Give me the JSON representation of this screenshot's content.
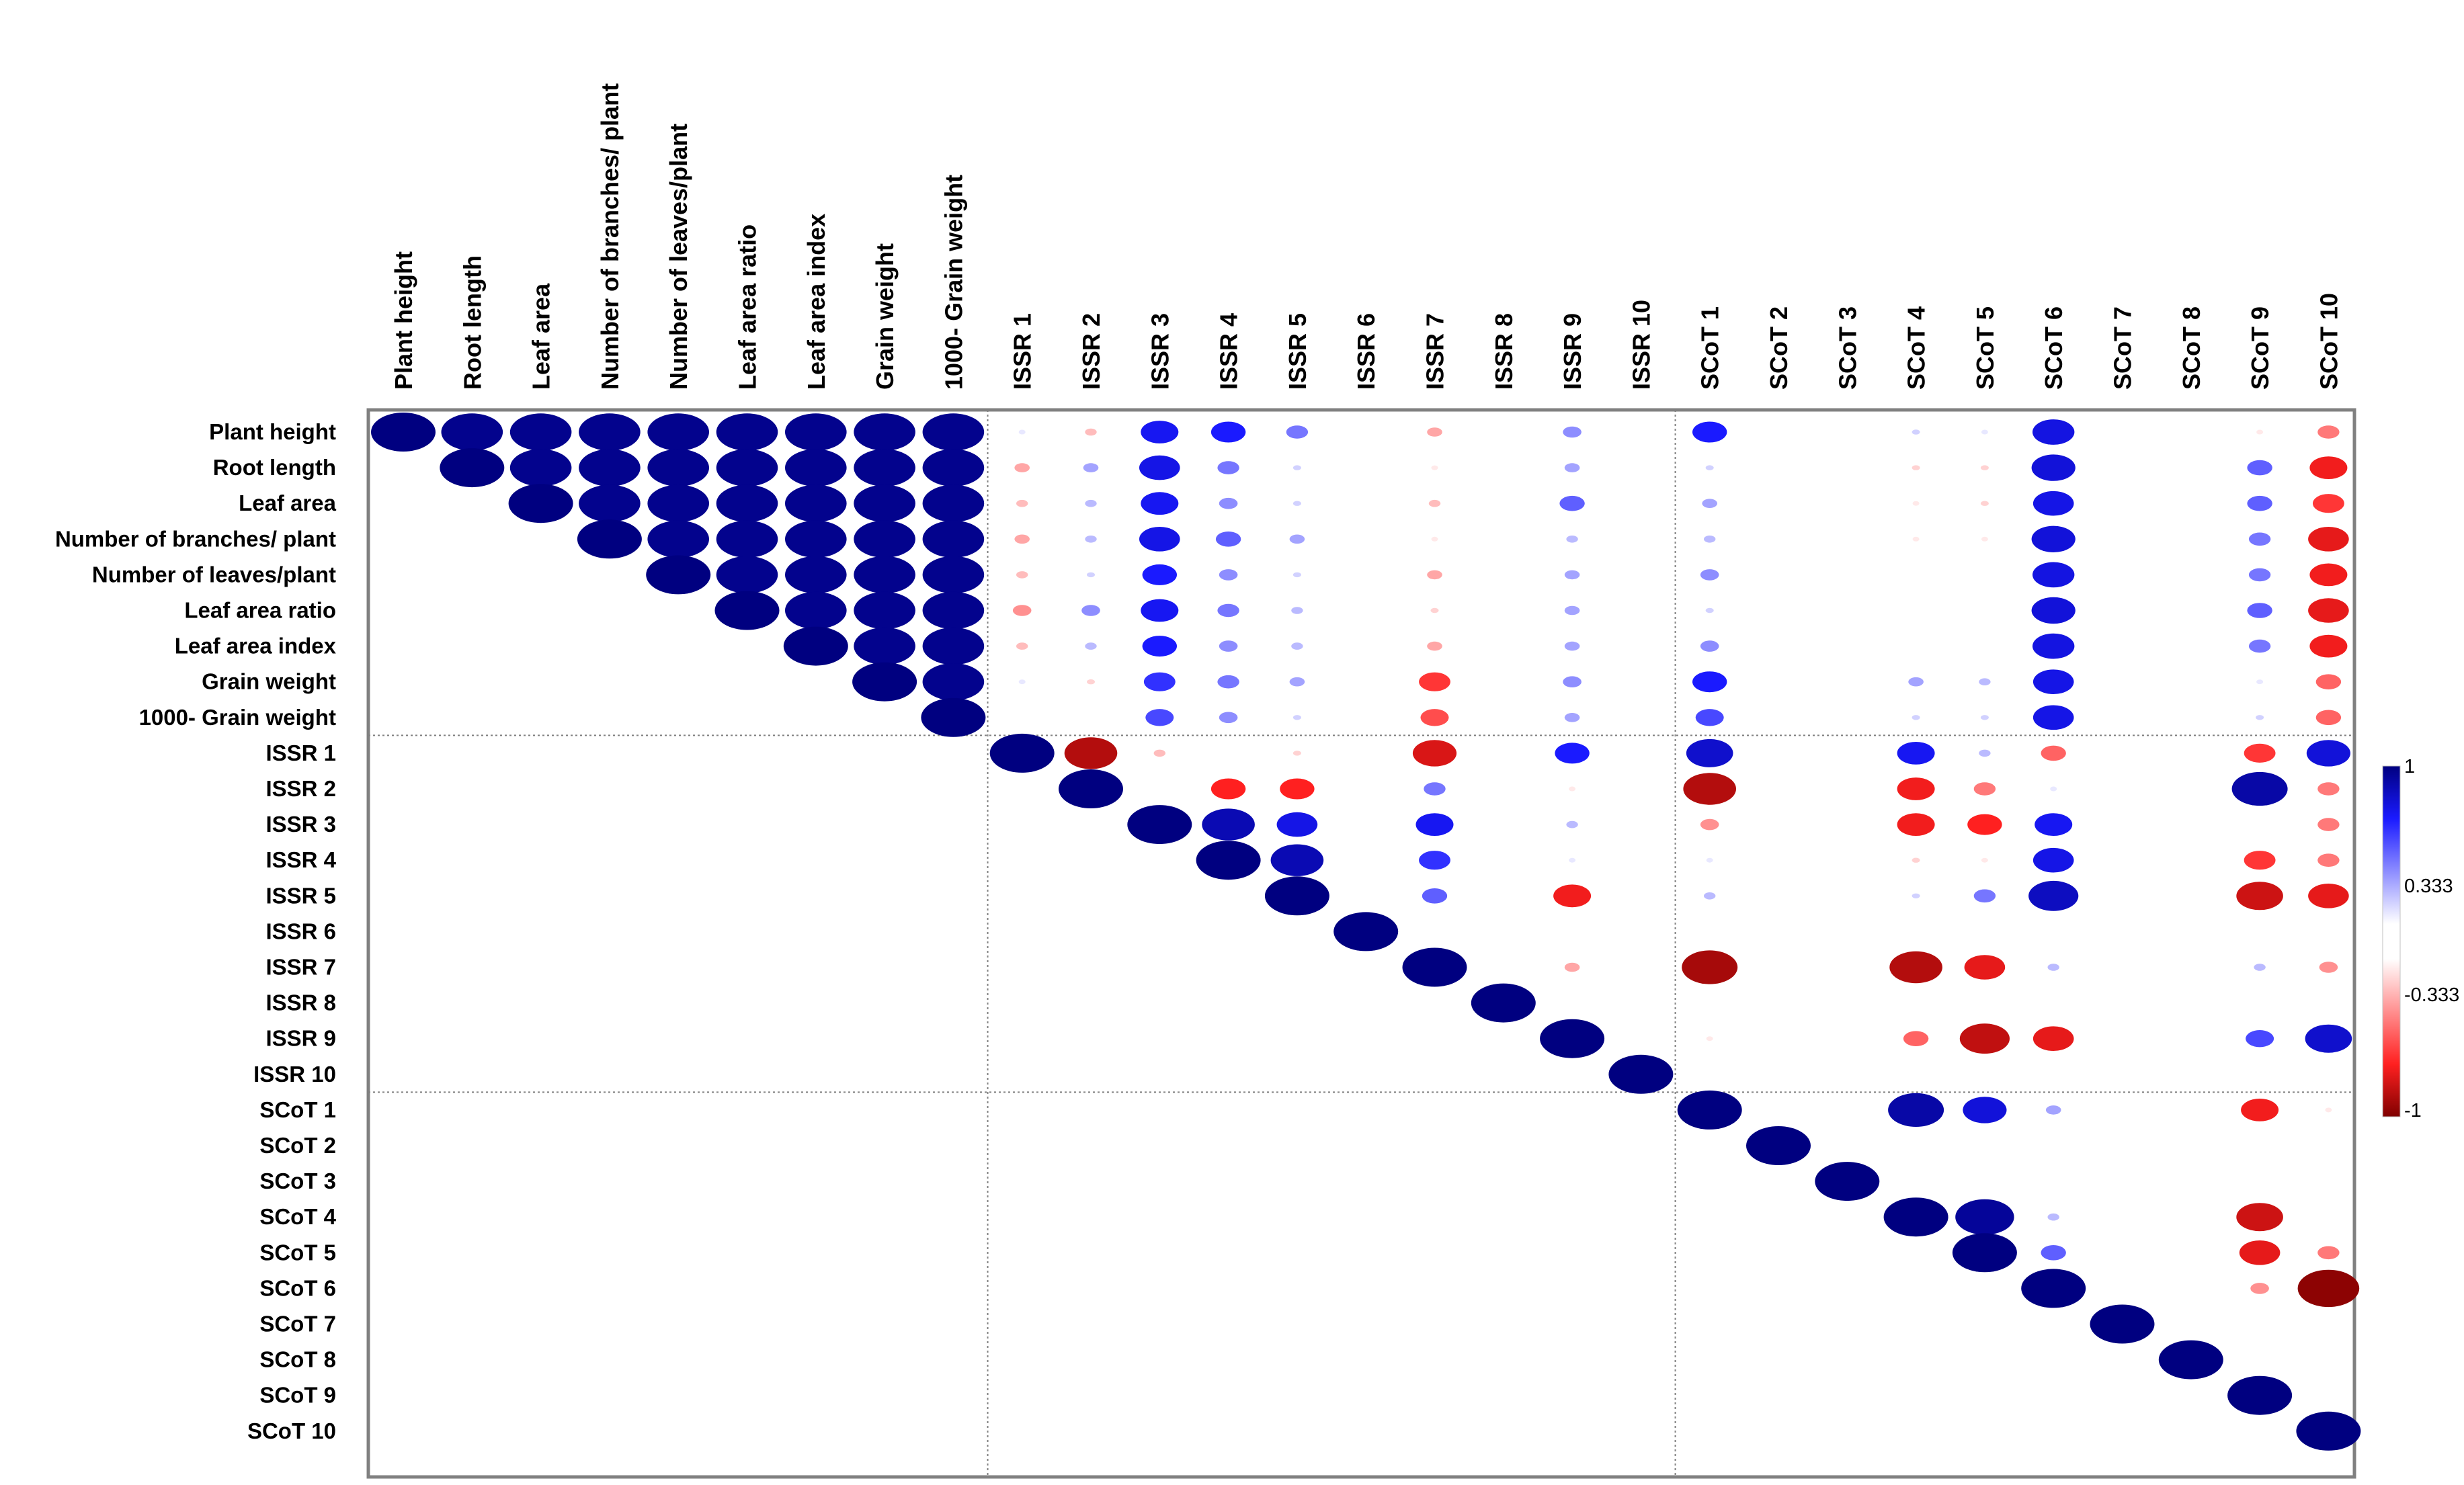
{
  "chart_data": {
    "type": "heatmap",
    "style": "correlation-ellipse",
    "colors": {
      "positive_strong": "#000080",
      "positive_mid": "#1a1aff",
      "neutral": "#ffffff",
      "negative_mid": "#ff2020",
      "negative_strong": "#800000",
      "grid": "#808080"
    },
    "row_labels": [
      "Plant height",
      "Root length",
      "Leaf area",
      "Number of branches/ plant",
      "Number of leaves/plant",
      "Leaf area ratio",
      "Leaf area index",
      "Grain weight",
      "1000- Grain weight",
      "ISSR 1",
      "ISSR 2",
      "ISSR 3",
      "ISSR 4",
      "ISSR 5",
      "ISSR 6",
      "ISSR 7",
      "ISSR 8",
      "ISSR 9",
      "ISSR 10",
      "SCoT 1",
      "SCoT 2",
      "SCoT 3",
      "SCoT 4",
      "SCoT 5",
      "SCoT 6",
      "SCoT 7",
      "SCoT 8",
      "SCoT 9",
      "SCoT 10"
    ],
    "col_labels": [
      "Plant height",
      "Root length",
      "Leaf area",
      "Number of branches/ plant",
      "Number of leaves/plant",
      "Leaf area ratio",
      "Leaf area index",
      "Grain weight",
      "1000- Grain weight",
      "ISSR 1",
      "ISSR 2",
      "ISSR 3",
      "ISSR 4",
      "ISSR 5",
      "ISSR 6",
      "ISSR 7",
      "ISSR 8",
      "ISSR 9",
      "ISSR 10",
      "SCoT 1",
      "SCoT 2",
      "SCoT 3",
      "SCoT 4",
      "SCoT 5",
      "SCoT 6",
      "SCoT 7",
      "SCoT 8",
      "SCoT 9",
      "SCoT 10"
    ],
    "group_boundaries_after_index": [
      8,
      18
    ],
    "legend": {
      "labels": [
        "1",
        "0.333",
        "-0.333",
        "-1"
      ],
      "range": [
        -1,
        1
      ],
      "position": "right"
    },
    "correlations": [
      {
        "row": 0,
        "col": 0,
        "r": 1.0
      },
      {
        "row": 0,
        "col": 1,
        "r": 0.95
      },
      {
        "row": 0,
        "col": 2,
        "r": 0.95
      },
      {
        "row": 0,
        "col": 3,
        "r": 0.95
      },
      {
        "row": 0,
        "col": 4,
        "r": 0.95
      },
      {
        "row": 0,
        "col": 5,
        "r": 0.95
      },
      {
        "row": 0,
        "col": 6,
        "r": 0.95
      },
      {
        "row": 0,
        "col": 7,
        "r": 0.95
      },
      {
        "row": 0,
        "col": 8,
        "r": 0.95
      },
      {
        "row": 1,
        "col": 1,
        "r": 1.0
      },
      {
        "row": 1,
        "col": 2,
        "r": 0.95
      },
      {
        "row": 1,
        "col": 3,
        "r": 0.95
      },
      {
        "row": 1,
        "col": 4,
        "r": 0.95
      },
      {
        "row": 1,
        "col": 5,
        "r": 0.95
      },
      {
        "row": 1,
        "col": 6,
        "r": 0.95
      },
      {
        "row": 1,
        "col": 7,
        "r": 0.95
      },
      {
        "row": 1,
        "col": 8,
        "r": 0.95
      },
      {
        "row": 2,
        "col": 2,
        "r": 1.0
      },
      {
        "row": 2,
        "col": 3,
        "r": 0.95
      },
      {
        "row": 2,
        "col": 4,
        "r": 0.95
      },
      {
        "row": 2,
        "col": 5,
        "r": 0.95
      },
      {
        "row": 2,
        "col": 6,
        "r": 0.95
      },
      {
        "row": 2,
        "col": 7,
        "r": 0.95
      },
      {
        "row": 2,
        "col": 8,
        "r": 0.95
      },
      {
        "row": 3,
        "col": 3,
        "r": 1.0
      },
      {
        "row": 3,
        "col": 4,
        "r": 0.95
      },
      {
        "row": 3,
        "col": 5,
        "r": 0.95
      },
      {
        "row": 3,
        "col": 6,
        "r": 0.95
      },
      {
        "row": 3,
        "col": 7,
        "r": 0.95
      },
      {
        "row": 3,
        "col": 8,
        "r": 0.95
      },
      {
        "row": 4,
        "col": 4,
        "r": 1.0
      },
      {
        "row": 4,
        "col": 5,
        "r": 0.95
      },
      {
        "row": 4,
        "col": 6,
        "r": 0.95
      },
      {
        "row": 4,
        "col": 7,
        "r": 0.95
      },
      {
        "row": 4,
        "col": 8,
        "r": 0.95
      },
      {
        "row": 5,
        "col": 5,
        "r": 1.0
      },
      {
        "row": 5,
        "col": 6,
        "r": 0.95
      },
      {
        "row": 5,
        "col": 7,
        "r": 0.95
      },
      {
        "row": 5,
        "col": 8,
        "r": 0.95
      },
      {
        "row": 6,
        "col": 6,
        "r": 1.0
      },
      {
        "row": 6,
        "col": 7,
        "r": 0.95
      },
      {
        "row": 6,
        "col": 8,
        "r": 0.95
      },
      {
        "row": 7,
        "col": 7,
        "r": 1.0
      },
      {
        "row": 7,
        "col": 8,
        "r": 0.95
      },
      {
        "row": 8,
        "col": 8,
        "r": 1.0
      },
      {
        "row": 0,
        "col": 9,
        "r": 0.05
      },
      {
        "row": 0,
        "col": 10,
        "r": -0.15
      },
      {
        "row": 0,
        "col": 11,
        "r": 0.55
      },
      {
        "row": 0,
        "col": 12,
        "r": 0.5
      },
      {
        "row": 0,
        "col": 13,
        "r": 0.3
      },
      {
        "row": 0,
        "col": 15,
        "r": -0.2
      },
      {
        "row": 0,
        "col": 17,
        "r": 0.25
      },
      {
        "row": 0,
        "col": 19,
        "r": 0.5
      },
      {
        "row": 0,
        "col": 22,
        "r": 0.1
      },
      {
        "row": 0,
        "col": 23,
        "r": 0.05
      },
      {
        "row": 0,
        "col": 24,
        "r": 0.62
      },
      {
        "row": 0,
        "col": 27,
        "r": -0.05
      },
      {
        "row": 0,
        "col": 28,
        "r": -0.3
      },
      {
        "row": 1,
        "col": 9,
        "r": -0.2
      },
      {
        "row": 1,
        "col": 10,
        "r": 0.2
      },
      {
        "row": 1,
        "col": 11,
        "r": 0.6
      },
      {
        "row": 1,
        "col": 12,
        "r": 0.3
      },
      {
        "row": 1,
        "col": 13,
        "r": 0.1
      },
      {
        "row": 1,
        "col": 15,
        "r": -0.05
      },
      {
        "row": 1,
        "col": 17,
        "r": 0.2
      },
      {
        "row": 1,
        "col": 19,
        "r": 0.1
      },
      {
        "row": 1,
        "col": 22,
        "r": -0.1
      },
      {
        "row": 1,
        "col": 23,
        "r": -0.1
      },
      {
        "row": 1,
        "col": 24,
        "r": 0.65
      },
      {
        "row": 1,
        "col": 27,
        "r": 0.35
      },
      {
        "row": 1,
        "col": 28,
        "r": -0.55
      },
      {
        "row": 2,
        "col": 9,
        "r": -0.15
      },
      {
        "row": 2,
        "col": 10,
        "r": 0.15
      },
      {
        "row": 2,
        "col": 11,
        "r": 0.55
      },
      {
        "row": 2,
        "col": 12,
        "r": 0.25
      },
      {
        "row": 2,
        "col": 13,
        "r": 0.1
      },
      {
        "row": 2,
        "col": 15,
        "r": -0.15
      },
      {
        "row": 2,
        "col": 17,
        "r": 0.35
      },
      {
        "row": 2,
        "col": 19,
        "r": 0.2
      },
      {
        "row": 2,
        "col": 22,
        "r": -0.05
      },
      {
        "row": 2,
        "col": 23,
        "r": -0.1
      },
      {
        "row": 2,
        "col": 24,
        "r": 0.6
      },
      {
        "row": 2,
        "col": 27,
        "r": 0.35
      },
      {
        "row": 2,
        "col": 28,
        "r": -0.45
      },
      {
        "row": 3,
        "col": 9,
        "r": -0.2
      },
      {
        "row": 3,
        "col": 10,
        "r": 0.15
      },
      {
        "row": 3,
        "col": 11,
        "r": 0.6
      },
      {
        "row": 3,
        "col": 12,
        "r": 0.35
      },
      {
        "row": 3,
        "col": 13,
        "r": 0.2
      },
      {
        "row": 3,
        "col": 15,
        "r": -0.05
      },
      {
        "row": 3,
        "col": 17,
        "r": 0.15
      },
      {
        "row": 3,
        "col": 19,
        "r": 0.15
      },
      {
        "row": 3,
        "col": 22,
        "r": -0.05
      },
      {
        "row": 3,
        "col": 23,
        "r": -0.05
      },
      {
        "row": 3,
        "col": 24,
        "r": 0.65
      },
      {
        "row": 3,
        "col": 27,
        "r": 0.3
      },
      {
        "row": 3,
        "col": 28,
        "r": -0.6
      },
      {
        "row": 4,
        "col": 9,
        "r": -0.15
      },
      {
        "row": 4,
        "col": 10,
        "r": 0.1
      },
      {
        "row": 4,
        "col": 11,
        "r": 0.5
      },
      {
        "row": 4,
        "col": 12,
        "r": 0.25
      },
      {
        "row": 4,
        "col": 13,
        "r": 0.1
      },
      {
        "row": 4,
        "col": 15,
        "r": -0.2
      },
      {
        "row": 4,
        "col": 17,
        "r": 0.2
      },
      {
        "row": 4,
        "col": 19,
        "r": 0.25
      },
      {
        "row": 4,
        "col": 24,
        "r": 0.62
      },
      {
        "row": 4,
        "col": 27,
        "r": 0.3
      },
      {
        "row": 4,
        "col": 28,
        "r": -0.55
      },
      {
        "row": 5,
        "col": 9,
        "r": -0.25
      },
      {
        "row": 5,
        "col": 10,
        "r": 0.25
      },
      {
        "row": 5,
        "col": 11,
        "r": 0.55
      },
      {
        "row": 5,
        "col": 12,
        "r": 0.3
      },
      {
        "row": 5,
        "col": 13,
        "r": 0.15
      },
      {
        "row": 5,
        "col": 15,
        "r": -0.1
      },
      {
        "row": 5,
        "col": 17,
        "r": 0.2
      },
      {
        "row": 5,
        "col": 19,
        "r": 0.1
      },
      {
        "row": 5,
        "col": 24,
        "r": 0.65
      },
      {
        "row": 5,
        "col": 27,
        "r": 0.35
      },
      {
        "row": 5,
        "col": 28,
        "r": -0.6
      },
      {
        "row": 6,
        "col": 9,
        "r": -0.15
      },
      {
        "row": 6,
        "col": 10,
        "r": 0.15
      },
      {
        "row": 6,
        "col": 11,
        "r": 0.5
      },
      {
        "row": 6,
        "col": 12,
        "r": 0.25
      },
      {
        "row": 6,
        "col": 13,
        "r": 0.15
      },
      {
        "row": 6,
        "col": 15,
        "r": -0.2
      },
      {
        "row": 6,
        "col": 17,
        "r": 0.2
      },
      {
        "row": 6,
        "col": 19,
        "r": 0.25
      },
      {
        "row": 6,
        "col": 24,
        "r": 0.62
      },
      {
        "row": 6,
        "col": 27,
        "r": 0.3
      },
      {
        "row": 6,
        "col": 28,
        "r": -0.55
      },
      {
        "row": 7,
        "col": 9,
        "r": 0.05
      },
      {
        "row": 7,
        "col": 10,
        "r": -0.1
      },
      {
        "row": 7,
        "col": 11,
        "r": 0.45
      },
      {
        "row": 7,
        "col": 12,
        "r": 0.3
      },
      {
        "row": 7,
        "col": 13,
        "r": 0.2
      },
      {
        "row": 7,
        "col": 15,
        "r": -0.45
      },
      {
        "row": 7,
        "col": 17,
        "r": 0.25
      },
      {
        "row": 7,
        "col": 19,
        "r": 0.5
      },
      {
        "row": 7,
        "col": 22,
        "r": 0.2
      },
      {
        "row": 7,
        "col": 23,
        "r": 0.15
      },
      {
        "row": 7,
        "col": 24,
        "r": 0.6
      },
      {
        "row": 7,
        "col": 27,
        "r": 0.05
      },
      {
        "row": 7,
        "col": 28,
        "r": -0.35
      },
      {
        "row": 8,
        "col": 11,
        "r": 0.4
      },
      {
        "row": 8,
        "col": 12,
        "r": 0.25
      },
      {
        "row": 8,
        "col": 13,
        "r": 0.1
      },
      {
        "row": 8,
        "col": 15,
        "r": -0.4
      },
      {
        "row": 8,
        "col": 17,
        "r": 0.2
      },
      {
        "row": 8,
        "col": 19,
        "r": 0.4
      },
      {
        "row": 8,
        "col": 22,
        "r": 0.1
      },
      {
        "row": 8,
        "col": 23,
        "r": 0.1
      },
      {
        "row": 8,
        "col": 24,
        "r": 0.6
      },
      {
        "row": 8,
        "col": 27,
        "r": 0.1
      },
      {
        "row": 8,
        "col": 28,
        "r": -0.35
      },
      {
        "row": 9,
        "col": 9,
        "r": 1.0
      },
      {
        "row": 9,
        "col": 10,
        "r": -0.8
      },
      {
        "row": 9,
        "col": 11,
        "r": -0.15
      },
      {
        "row": 9,
        "col": 13,
        "r": -0.1
      },
      {
        "row": 9,
        "col": 15,
        "r": -0.65
      },
      {
        "row": 9,
        "col": 17,
        "r": 0.5
      },
      {
        "row": 9,
        "col": 19,
        "r": 0.7
      },
      {
        "row": 9,
        "col": 22,
        "r": 0.55
      },
      {
        "row": 9,
        "col": 23,
        "r": 0.15
      },
      {
        "row": 9,
        "col": 24,
        "r": -0.35
      },
      {
        "row": 9,
        "col": 27,
        "r": -0.45
      },
      {
        "row": 9,
        "col": 28,
        "r": 0.65
      },
      {
        "row": 10,
        "col": 10,
        "r": 1.0
      },
      {
        "row": 10,
        "col": 12,
        "r": -0.5
      },
      {
        "row": 10,
        "col": 13,
        "r": -0.5
      },
      {
        "row": 10,
        "col": 15,
        "r": 0.3
      },
      {
        "row": 10,
        "col": 17,
        "r": -0.05
      },
      {
        "row": 10,
        "col": 19,
        "r": -0.8
      },
      {
        "row": 10,
        "col": 22,
        "r": -0.55
      },
      {
        "row": 10,
        "col": 23,
        "r": -0.3
      },
      {
        "row": 10,
        "col": 24,
        "r": 0.05
      },
      {
        "row": 10,
        "col": 27,
        "r": 0.85
      },
      {
        "row": 10,
        "col": 28,
        "r": -0.3
      },
      {
        "row": 11,
        "col": 11,
        "r": 1.0
      },
      {
        "row": 11,
        "col": 12,
        "r": 0.8
      },
      {
        "row": 11,
        "col": 13,
        "r": 0.6
      },
      {
        "row": 11,
        "col": 15,
        "r": 0.55
      },
      {
        "row": 11,
        "col": 17,
        "r": 0.15
      },
      {
        "row": 11,
        "col": 19,
        "r": -0.25
      },
      {
        "row": 11,
        "col": 22,
        "r": -0.55
      },
      {
        "row": 11,
        "col": 23,
        "r": -0.5
      },
      {
        "row": 11,
        "col": 24,
        "r": 0.55
      },
      {
        "row": 11,
        "col": 28,
        "r": -0.3
      },
      {
        "row": 12,
        "col": 12,
        "r": 1.0
      },
      {
        "row": 12,
        "col": 13,
        "r": 0.8
      },
      {
        "row": 12,
        "col": 15,
        "r": 0.45
      },
      {
        "row": 12,
        "col": 17,
        "r": 0.05
      },
      {
        "row": 12,
        "col": 19,
        "r": 0.05
      },
      {
        "row": 12,
        "col": 22,
        "r": -0.1
      },
      {
        "row": 12,
        "col": 23,
        "r": -0.05
      },
      {
        "row": 12,
        "col": 24,
        "r": 0.6
      },
      {
        "row": 12,
        "col": 27,
        "r": -0.45
      },
      {
        "row": 12,
        "col": 28,
        "r": -0.3
      },
      {
        "row": 13,
        "col": 13,
        "r": 1.0
      },
      {
        "row": 13,
        "col": 15,
        "r": 0.35
      },
      {
        "row": 13,
        "col": 17,
        "r": -0.55
      },
      {
        "row": 13,
        "col": 19,
        "r": 0.15
      },
      {
        "row": 13,
        "col": 22,
        "r": 0.1
      },
      {
        "row": 13,
        "col": 23,
        "r": 0.3
      },
      {
        "row": 13,
        "col": 24,
        "r": 0.75
      },
      {
        "row": 13,
        "col": 27,
        "r": -0.7
      },
      {
        "row": 13,
        "col": 28,
        "r": -0.6
      },
      {
        "row": 14,
        "col": 14,
        "r": 1.0
      },
      {
        "row": 15,
        "col": 15,
        "r": 1.0
      },
      {
        "row": 15,
        "col": 17,
        "r": -0.2
      },
      {
        "row": 15,
        "col": 19,
        "r": -0.85
      },
      {
        "row": 15,
        "col": 22,
        "r": -0.8
      },
      {
        "row": 15,
        "col": 23,
        "r": -0.6
      },
      {
        "row": 15,
        "col": 24,
        "r": 0.15
      },
      {
        "row": 15,
        "col": 27,
        "r": 0.15
      },
      {
        "row": 15,
        "col": 28,
        "r": -0.25
      },
      {
        "row": 16,
        "col": 16,
        "r": 1.0
      },
      {
        "row": 17,
        "col": 17,
        "r": 1.0
      },
      {
        "row": 17,
        "col": 19,
        "r": -0.05
      },
      {
        "row": 17,
        "col": 22,
        "r": -0.35
      },
      {
        "row": 17,
        "col": 23,
        "r": -0.75
      },
      {
        "row": 17,
        "col": 24,
        "r": -0.6
      },
      {
        "row": 17,
        "col": 27,
        "r": 0.4
      },
      {
        "row": 17,
        "col": 28,
        "r": 0.7
      },
      {
        "row": 18,
        "col": 18,
        "r": 1.0
      },
      {
        "row": 19,
        "col": 19,
        "r": 1.0
      },
      {
        "row": 19,
        "col": 22,
        "r": 0.85
      },
      {
        "row": 19,
        "col": 23,
        "r": 0.65
      },
      {
        "row": 19,
        "col": 24,
        "r": 0.2
      },
      {
        "row": 19,
        "col": 27,
        "r": -0.55
      },
      {
        "row": 19,
        "col": 28,
        "r": -0.05
      },
      {
        "row": 20,
        "col": 20,
        "r": 1.0
      },
      {
        "row": 21,
        "col": 21,
        "r": 1.0
      },
      {
        "row": 22,
        "col": 22,
        "r": 1.0
      },
      {
        "row": 22,
        "col": 23,
        "r": 0.9
      },
      {
        "row": 22,
        "col": 24,
        "r": 0.15
      },
      {
        "row": 22,
        "col": 27,
        "r": -0.7
      },
      {
        "row": 23,
        "col": 23,
        "r": 1.0
      },
      {
        "row": 23,
        "col": 24,
        "r": 0.35
      },
      {
        "row": 23,
        "col": 27,
        "r": -0.6
      },
      {
        "row": 23,
        "col": 28,
        "r": -0.3
      },
      {
        "row": 24,
        "col": 24,
        "r": 1.0
      },
      {
        "row": 24,
        "col": 27,
        "r": -0.25
      },
      {
        "row": 24,
        "col": 28,
        "r": -0.95
      },
      {
        "row": 25,
        "col": 25,
        "r": 1.0
      },
      {
        "row": 26,
        "col": 26,
        "r": 1.0
      },
      {
        "row": 27,
        "col": 27,
        "r": 1.0
      },
      {
        "row": 28,
        "col": 28,
        "r": 1.0
      }
    ]
  }
}
